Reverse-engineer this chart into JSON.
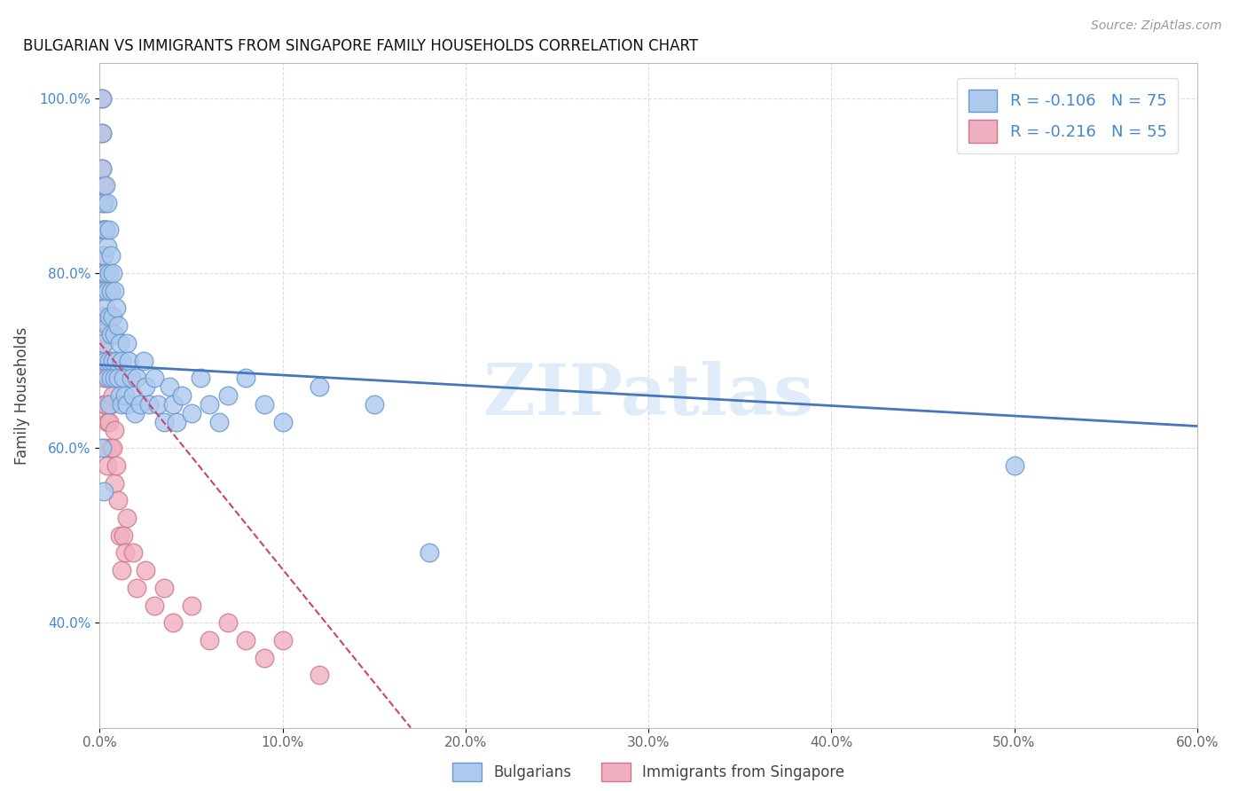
{
  "title": "BULGARIAN VS IMMIGRANTS FROM SINGAPORE FAMILY HOUSEHOLDS CORRELATION CHART",
  "source_text": "Source: ZipAtlas.com",
  "ylabel": "Family Households",
  "xlabel_blue": "Bulgarians",
  "xlabel_pink": "Immigrants from Singapore",
  "watermark": "ZIPatlas",
  "legend_blue_r": "R = -0.106",
  "legend_blue_n": "N = 75",
  "legend_pink_r": "R = -0.216",
  "legend_pink_n": "N = 55",
  "blue_color": "#adc9ee",
  "pink_color": "#f0afc0",
  "blue_edge": "#6699cc",
  "pink_edge": "#cc7788",
  "blue_line_color": "#4477bb",
  "pink_line_color": "#cc4466",
  "xmin": 0.0,
  "xmax": 0.6,
  "ymin": 0.28,
  "ymax": 1.04,
  "yticks": [
    0.4,
    0.6,
    0.8,
    1.0
  ],
  "ytick_labels": [
    "40.0%",
    "60.0%",
    "80.0%",
    "100.0%"
  ],
  "xticks": [
    0.0,
    0.1,
    0.2,
    0.3,
    0.4,
    0.5,
    0.6
  ],
  "xtick_labels": [
    "0.0%",
    "10.0%",
    "20.0%",
    "30.0%",
    "40.0%",
    "50.0%",
    "60.0%"
  ],
  "blue_line_x0": 0.0,
  "blue_line_x1": 0.6,
  "blue_line_y0": 0.695,
  "blue_line_y1": 0.625,
  "pink_line_x0": 0.0,
  "pink_line_x1": 0.17,
  "pink_line_y0": 0.72,
  "pink_line_y1": 0.28,
  "blue_scatter_x": [
    0.001,
    0.001,
    0.001,
    0.002,
    0.002,
    0.002,
    0.002,
    0.002,
    0.003,
    0.003,
    0.003,
    0.003,
    0.003,
    0.004,
    0.004,
    0.004,
    0.004,
    0.004,
    0.005,
    0.005,
    0.005,
    0.005,
    0.005,
    0.006,
    0.006,
    0.006,
    0.006,
    0.007,
    0.007,
    0.007,
    0.008,
    0.008,
    0.008,
    0.009,
    0.009,
    0.01,
    0.01,
    0.011,
    0.011,
    0.012,
    0.012,
    0.013,
    0.014,
    0.015,
    0.015,
    0.016,
    0.017,
    0.018,
    0.019,
    0.02,
    0.022,
    0.024,
    0.025,
    0.027,
    0.03,
    0.032,
    0.035,
    0.038,
    0.04,
    0.042,
    0.045,
    0.05,
    0.055,
    0.06,
    0.065,
    0.07,
    0.08,
    0.09,
    0.1,
    0.12,
    0.15,
    0.18,
    0.5,
    0.001,
    0.002
  ],
  "blue_scatter_y": [
    1.0,
    0.96,
    0.92,
    0.88,
    0.85,
    0.82,
    0.78,
    0.72,
    0.9,
    0.85,
    0.8,
    0.76,
    0.7,
    0.88,
    0.83,
    0.78,
    0.74,
    0.68,
    0.85,
    0.8,
    0.75,
    0.7,
    0.65,
    0.82,
    0.78,
    0.73,
    0.68,
    0.8,
    0.75,
    0.7,
    0.78,
    0.73,
    0.68,
    0.76,
    0.7,
    0.74,
    0.68,
    0.72,
    0.66,
    0.7,
    0.65,
    0.68,
    0.66,
    0.72,
    0.65,
    0.7,
    0.68,
    0.66,
    0.64,
    0.68,
    0.65,
    0.7,
    0.67,
    0.65,
    0.68,
    0.65,
    0.63,
    0.67,
    0.65,
    0.63,
    0.66,
    0.64,
    0.68,
    0.65,
    0.63,
    0.66,
    0.68,
    0.65,
    0.63,
    0.67,
    0.65,
    0.48,
    0.58,
    0.6,
    0.55
  ],
  "pink_scatter_x": [
    0.001,
    0.001,
    0.001,
    0.001,
    0.001,
    0.001,
    0.001,
    0.002,
    0.002,
    0.002,
    0.002,
    0.002,
    0.002,
    0.002,
    0.003,
    0.003,
    0.003,
    0.003,
    0.003,
    0.003,
    0.004,
    0.004,
    0.004,
    0.004,
    0.004,
    0.005,
    0.005,
    0.005,
    0.006,
    0.006,
    0.006,
    0.007,
    0.007,
    0.008,
    0.008,
    0.009,
    0.01,
    0.011,
    0.012,
    0.013,
    0.014,
    0.015,
    0.018,
    0.02,
    0.025,
    0.03,
    0.035,
    0.04,
    0.05,
    0.06,
    0.07,
    0.08,
    0.09,
    0.1,
    0.12
  ],
  "pink_scatter_y": [
    1.0,
    0.96,
    0.92,
    0.88,
    0.85,
    0.82,
    0.78,
    0.9,
    0.85,
    0.8,
    0.75,
    0.72,
    0.68,
    0.65,
    0.85,
    0.8,
    0.75,
    0.7,
    0.65,
    0.6,
    0.78,
    0.73,
    0.68,
    0.63,
    0.58,
    0.74,
    0.68,
    0.63,
    0.7,
    0.65,
    0.6,
    0.66,
    0.6,
    0.62,
    0.56,
    0.58,
    0.54,
    0.5,
    0.46,
    0.5,
    0.48,
    0.52,
    0.48,
    0.44,
    0.46,
    0.42,
    0.44,
    0.4,
    0.42,
    0.38,
    0.4,
    0.38,
    0.36,
    0.38,
    0.34
  ]
}
